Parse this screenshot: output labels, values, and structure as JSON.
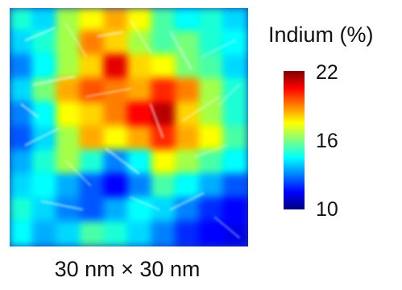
{
  "chart_data": {
    "type": "heatmap",
    "title": "",
    "xlabel": "",
    "ylabel": "",
    "scale_label": "30 nm × 30 nm",
    "colorbar": {
      "label": "Indium (%)",
      "min": 10,
      "max": 22,
      "ticks": [
        22,
        16,
        10
      ],
      "tick_labels": [
        "22",
        "16",
        "10"
      ],
      "colormap": "jet",
      "colors": [
        "#00007f",
        "#0000ff",
        "#0080ff",
        "#00ffff",
        "#80ff80",
        "#ffff00",
        "#ff8000",
        "#ff0000",
        "#7f0000"
      ]
    },
    "grid_shape": [
      10,
      10
    ],
    "grid_values": [
      [
        15.0,
        14.0,
        16.5,
        17.5,
        18.5,
        17.5,
        15.5,
        14.5,
        15.0,
        14.0
      ],
      [
        14.0,
        15.0,
        16.5,
        19.0,
        18.0,
        16.5,
        15.5,
        16.0,
        15.0,
        14.5
      ],
      [
        13.0,
        14.5,
        16.5,
        18.0,
        21.0,
        18.0,
        17.5,
        16.0,
        15.5,
        14.0
      ],
      [
        14.0,
        16.0,
        18.5,
        19.5,
        19.0,
        18.5,
        20.0,
        19.0,
        16.5,
        15.0
      ],
      [
        13.0,
        14.5,
        17.5,
        18.0,
        19.0,
        20.5,
        21.5,
        18.0,
        16.5,
        15.0
      ],
      [
        12.5,
        14.0,
        16.5,
        18.5,
        17.5,
        18.5,
        20.0,
        18.5,
        17.5,
        15.5
      ],
      [
        13.5,
        15.0,
        16.5,
        15.0,
        13.0,
        14.5,
        17.5,
        16.5,
        15.5,
        14.5
      ],
      [
        14.0,
        14.5,
        13.5,
        12.5,
        11.5,
        13.0,
        15.5,
        14.5,
        13.5,
        12.5
      ],
      [
        15.0,
        14.0,
        13.0,
        12.5,
        13.5,
        14.5,
        14.0,
        13.0,
        12.0,
        11.5
      ],
      [
        14.5,
        13.5,
        14.0,
        15.5,
        15.0,
        14.0,
        13.0,
        12.0,
        11.5,
        11.0
      ]
    ]
  }
}
